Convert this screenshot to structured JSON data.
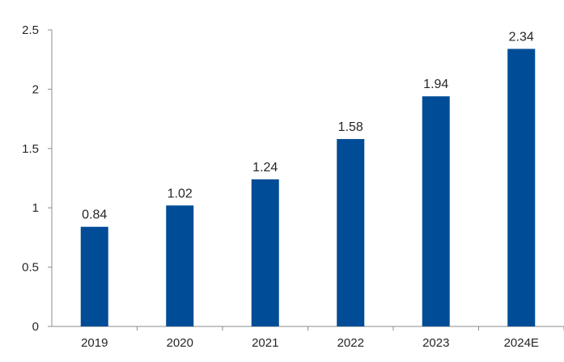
{
  "chart_data": {
    "type": "bar",
    "categories": [
      "2019",
      "2020",
      "2021",
      "2022",
      "2023",
      "2024E"
    ],
    "values": [
      0.84,
      1.02,
      1.24,
      1.58,
      1.94,
      2.34
    ],
    "data_labels": [
      "0.84",
      "1.02",
      "1.24",
      "1.58",
      "1.94",
      "2.34"
    ],
    "y_ticks": [
      0,
      0.5,
      1,
      1.5,
      2,
      2.5
    ],
    "y_tick_labels": [
      "0",
      "0.5",
      "1",
      "1.5",
      "2",
      "2.5"
    ],
    "ylim": [
      0,
      2.5
    ],
    "grid": false,
    "legend": "none",
    "title": "",
    "xlabel": "",
    "ylabel": "",
    "bar_color": "#004C97",
    "axis_color": "#8C8C8C",
    "text_color": "#262626"
  }
}
